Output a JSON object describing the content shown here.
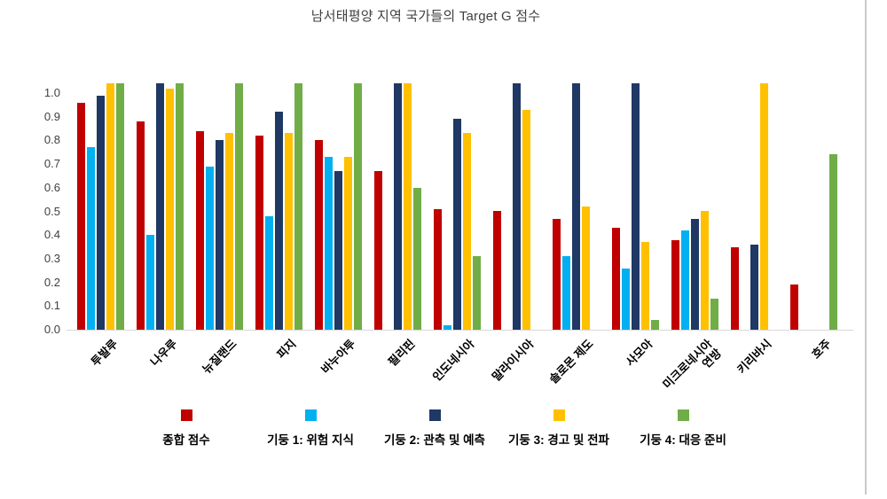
{
  "page": {
    "background_color": "#ffffff",
    "right_border_color": "#c9c9c9"
  },
  "chart_data": {
    "type": "bar",
    "title": "남서태평양 지역 국가들의 Target G 점수",
    "xlabel": "",
    "ylabel": "",
    "grid": false,
    "legend_position": "bottom",
    "ylim": [
      0.0,
      1.04
    ],
    "y_ticks": [
      0.0,
      0.1,
      0.2,
      0.3,
      0.4,
      0.5,
      0.6,
      0.7,
      0.8,
      0.9,
      1.0
    ],
    "axis_line_color": "#d9d9d9",
    "tick_label_color": "#404040",
    "categories": [
      "투발루",
      "나우루",
      "뉴질랜드",
      "피지",
      "바누아투",
      "필리핀",
      "인도네시아",
      "말라이시아",
      "솔로몬 제도",
      "사모아",
      "미크로네시아 연방",
      "키리바시",
      "호주"
    ],
    "x_tick_display": [
      "투발루",
      "나우루",
      "뉴질랜드",
      "피지",
      "바누아투",
      "필리핀",
      "인도네시아",
      "말라이시아",
      "솔로몬 제도",
      "사모아",
      "미크로네시아\n연방",
      "키리바시",
      "호주"
    ],
    "series": [
      {
        "name": "종합 점수",
        "color": "#c00000",
        "values": [
          0.96,
          0.88,
          0.84,
          0.82,
          0.8,
          0.67,
          0.51,
          0.5,
          0.47,
          0.43,
          0.38,
          0.35,
          0.19
        ]
      },
      {
        "name": "기둥 1: 위험 지식",
        "color": "#00b0f0",
        "values": [
          0.77,
          0.4,
          0.69,
          0.48,
          0.73,
          0,
          0.02,
          0,
          0.31,
          0.26,
          0.42,
          0,
          0
        ]
      },
      {
        "name": "기둥 2: 관측 및 예측",
        "color": "#1f3864",
        "values": [
          0.99,
          1.04,
          0.8,
          0.92,
          0.67,
          1.04,
          0.89,
          1.04,
          1.04,
          1.04,
          0.47,
          0.36,
          0
        ]
      },
      {
        "name": "기둥 3: 경고 및 전파",
        "color": "#ffc000",
        "values": [
          1.04,
          1.02,
          0.83,
          0.83,
          0.73,
          1.04,
          0.83,
          0.93,
          0.52,
          0.37,
          0.5,
          1.04,
          0
        ]
      },
      {
        "name": "기둥 4: 대응 준비",
        "color": "#70ad47",
        "values": [
          1.04,
          1.04,
          1.04,
          1.04,
          1.04,
          0.6,
          0.31,
          0,
          0,
          0.04,
          0.13,
          0,
          0.74
        ]
      }
    ]
  }
}
